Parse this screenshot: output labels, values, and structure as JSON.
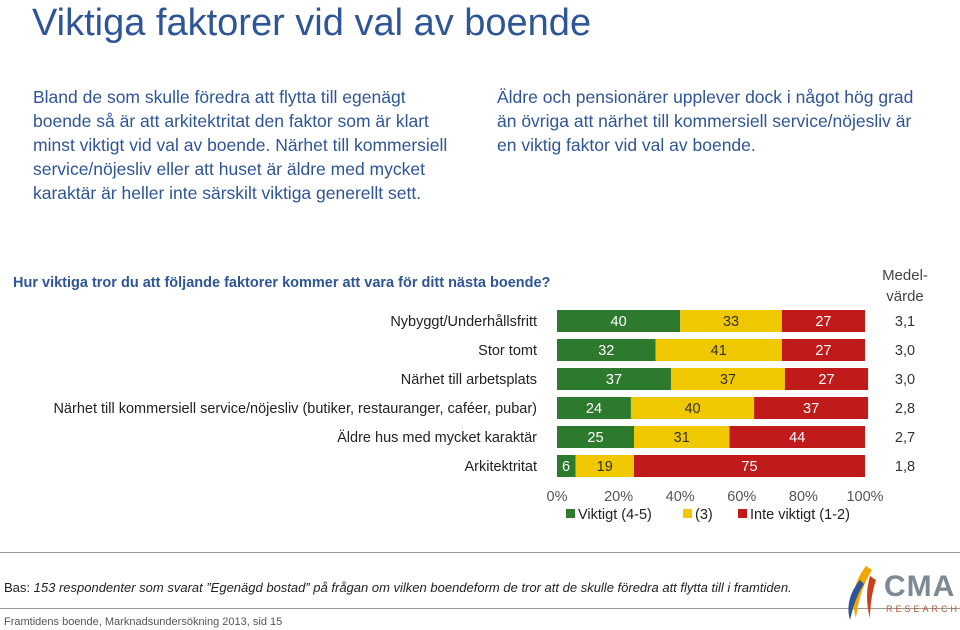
{
  "title": "Viktiga faktorer vid val av boende",
  "intro_left": "Bland de som skulle föredra att flytta till egenägt boende så är att arkitektritat den faktor som är klart minst viktigt vid val av boende. Närhet till kommersiell service/nöjesliv eller att huset är äldre med mycket karaktär är heller inte särskilt viktiga generellt sett.",
  "intro_right": "Äldre och pensionärer upplever dock i något hög grad än övriga att närhet till kommersiell service/nöjesliv är en viktig faktor vid val av boende.",
  "question": "Hur viktiga tror du att följande faktorer kommer att vara för ditt nästa boende?",
  "mean_header_line1": "Medel-",
  "mean_header_line2": "värde",
  "colors": {
    "viktigt": "#2d7a2e",
    "mitten": "#f0c800",
    "inte_viktigt": "#c01a1a",
    "text_blue": "#2e5597"
  },
  "chart_data": {
    "type": "bar",
    "orientation": "horizontal",
    "stacked": true,
    "categories": [
      "Nybyggt/Underhållsfritt",
      "Stor tomt",
      "Närhet till arbetsplats",
      "Närhet till kommersiell service/nöjesliv (butiker, restauranger, caféer, pubar)",
      "Äldre hus med mycket karaktär",
      "Arkitektritat"
    ],
    "series": [
      {
        "name": "Viktigt (4-5)",
        "values": [
          40,
          32,
          37,
          24,
          25,
          6
        ]
      },
      {
        "name": "(3)",
        "values": [
          33,
          41,
          37,
          40,
          31,
          19
        ]
      },
      {
        "name": "Inte viktigt (1-2)",
        "values": [
          27,
          27,
          27,
          37,
          44,
          75
        ]
      }
    ],
    "means": [
      "3,1",
      "3,0",
      "3,0",
      "2,8",
      "2,7",
      "1,8"
    ],
    "x_ticks": [
      "0%",
      "20%",
      "40%",
      "60%",
      "80%",
      "100%"
    ],
    "xlim": [
      0,
      100
    ],
    "legend_position": "bottom"
  },
  "footer": {
    "bas_label": "Bas:",
    "bas_text": "153 respondenter som svarat ”Egenägd bostad” på frågan om vilken boendeform de tror att de skulle föredra att flytta till i framtiden.",
    "source": "Framtidens boende, Marknadsundersökning 2013, sid 15",
    "logo_text": "CMA",
    "logo_sub": "RESEARCH"
  }
}
